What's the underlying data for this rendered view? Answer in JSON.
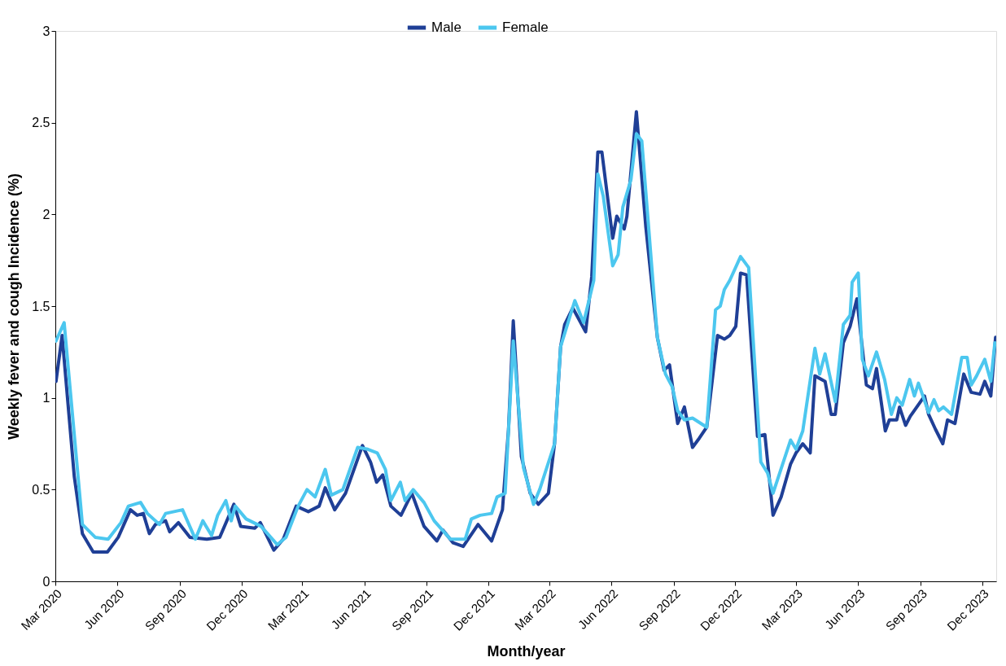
{
  "chart_data": {
    "type": "line",
    "xlabel": "Month/year",
    "ylabel": "Weekly fever and cough Incidence (%)",
    "xlim": [
      "2020-03-01",
      "2023-12-22"
    ],
    "xticks": [
      {
        "value": "2020-03-01",
        "label": "Mar 2020"
      },
      {
        "value": "2020-06-01",
        "label": "Jun 2020"
      },
      {
        "value": "2020-09-01",
        "label": "Sep 2020"
      },
      {
        "value": "2020-12-01",
        "label": "Dec 2020"
      },
      {
        "value": "2021-03-01",
        "label": "Mar 2021"
      },
      {
        "value": "2021-06-01",
        "label": "Jun 2021"
      },
      {
        "value": "2021-09-01",
        "label": "Sep 2021"
      },
      {
        "value": "2021-12-01",
        "label": "Dec 2021"
      },
      {
        "value": "2022-03-01",
        "label": "Mar 2022"
      },
      {
        "value": "2022-06-01",
        "label": "Jun 2022"
      },
      {
        "value": "2022-09-01",
        "label": "Sep 2022"
      },
      {
        "value": "2022-12-01",
        "label": "Dec 2022"
      },
      {
        "value": "2023-03-01",
        "label": "Mar 2023"
      },
      {
        "value": "2023-06-01",
        "label": "Jun 2023"
      },
      {
        "value": "2023-09-01",
        "label": "Sep 2023"
      },
      {
        "value": "2023-12-01",
        "label": "Dec 2023"
      }
    ],
    "ylim": [
      0,
      3
    ],
    "yticks": [
      0,
      0.5,
      1,
      1.5,
      2,
      2.5,
      3
    ],
    "grid": false,
    "legend": "top",
    "marker": "none",
    "line_style": "solid",
    "series": [
      {
        "name": "Male",
        "color": "#1f3f96",
        "x": [
          "2020-03-02",
          "2020-03-11",
          "2020-03-29",
          "2020-04-10",
          "2020-04-26",
          "2020-05-17",
          "2020-06-02",
          "2020-06-20",
          "2020-06-30",
          "2020-07-09",
          "2020-07-18",
          "2020-07-27",
          "2020-08-11",
          "2020-08-17",
          "2020-08-30",
          "2020-09-16",
          "2020-10-11",
          "2020-10-30",
          "2020-11-20",
          "2020-11-30",
          "2020-12-21",
          "2020-12-29",
          "2021-01-18",
          "2021-02-01",
          "2021-02-20",
          "2021-03-10",
          "2021-03-26",
          "2021-04-04",
          "2021-04-18",
          "2021-05-04",
          "2021-05-29",
          "2021-06-10",
          "2021-06-19",
          "2021-06-28",
          "2021-07-10",
          "2021-07-25",
          "2021-08-10",
          "2021-08-28",
          "2021-09-16",
          "2021-09-25",
          "2021-10-10",
          "2021-10-25",
          "2021-11-16",
          "2021-12-06",
          "2021-12-22",
          "2021-12-31",
          "2022-01-07",
          "2022-01-19",
          "2022-02-01",
          "2022-02-13",
          "2022-02-28",
          "2022-03-09",
          "2022-03-18",
          "2022-03-24",
          "2022-04-05",
          "2022-04-24",
          "2022-05-03",
          "2022-05-12",
          "2022-05-18",
          "2022-06-03",
          "2022-06-09",
          "2022-06-20",
          "2022-06-24",
          "2022-07-08",
          "2022-07-22",
          "2022-08-08",
          "2022-08-18",
          "2022-08-26",
          "2022-09-07",
          "2022-09-17",
          "2022-09-29",
          "2022-10-09",
          "2022-10-20",
          "2022-11-05",
          "2022-11-15",
          "2022-11-23",
          "2022-12-02",
          "2022-12-09",
          "2022-12-18",
          "2023-01-03",
          "2023-01-14",
          "2023-01-26",
          "2023-02-07",
          "2023-02-21",
          "2023-03-01",
          "2023-03-11",
          "2023-03-22",
          "2023-03-29",
          "2023-04-13",
          "2023-04-22",
          "2023-04-28",
          "2023-05-10",
          "2023-05-20",
          "2023-05-30",
          "2023-06-13",
          "2023-06-22",
          "2023-06-28",
          "2023-07-11",
          "2023-07-17",
          "2023-07-28",
          "2023-08-01",
          "2023-08-10",
          "2023-08-17",
          "2023-09-07",
          "2023-09-13",
          "2023-09-23",
          "2023-10-04",
          "2023-10-11",
          "2023-10-22",
          "2023-11-04",
          "2023-11-15",
          "2023-11-28",
          "2023-12-05",
          "2023-12-14",
          "2023-12-21"
        ],
        "values": [
          1.09,
          1.34,
          0.57,
          0.26,
          0.16,
          0.16,
          0.24,
          0.39,
          0.36,
          0.37,
          0.26,
          0.31,
          0.33,
          0.27,
          0.32,
          0.24,
          0.23,
          0.24,
          0.42,
          0.3,
          0.29,
          0.32,
          0.17,
          0.23,
          0.41,
          0.38,
          0.41,
          0.51,
          0.39,
          0.48,
          0.74,
          0.65,
          0.54,
          0.58,
          0.41,
          0.36,
          0.48,
          0.3,
          0.22,
          0.28,
          0.21,
          0.19,
          0.31,
          0.22,
          0.39,
          0.83,
          1.42,
          0.68,
          0.48,
          0.42,
          0.48,
          0.75,
          1.28,
          1.4,
          1.49,
          1.36,
          1.66,
          2.34,
          2.34,
          1.87,
          1.99,
          1.92,
          1.99,
          2.56,
          1.93,
          1.33,
          1.15,
          1.18,
          0.86,
          0.95,
          0.73,
          0.78,
          0.84,
          1.34,
          1.32,
          1.34,
          1.39,
          1.68,
          1.67,
          0.79,
          0.8,
          0.36,
          0.46,
          0.64,
          0.7,
          0.75,
          0.7,
          1.12,
          1.09,
          0.91,
          0.91,
          1.3,
          1.39,
          1.54,
          1.07,
          1.05,
          1.16,
          0.82,
          0.88,
          0.88,
          0.95,
          0.85,
          0.9,
          1.01,
          0.91,
          0.83,
          0.75,
          0.88,
          0.86,
          1.13,
          1.03,
          1.02,
          1.09,
          1.01,
          1.33
        ]
      },
      {
        "name": "Female",
        "color": "#4cc7ef",
        "x": [
          "2020-03-02",
          "2020-03-14",
          "2020-04-10",
          "2020-04-29",
          "2020-05-18",
          "2020-06-06",
          "2020-06-17",
          "2020-07-05",
          "2020-07-15",
          "2020-08-02",
          "2020-08-11",
          "2020-09-05",
          "2020-09-24",
          "2020-10-05",
          "2020-10-18",
          "2020-10-27",
          "2020-11-08",
          "2020-11-16",
          "2020-11-22",
          "2020-12-08",
          "2020-12-30",
          "2021-01-23",
          "2021-02-05",
          "2021-02-23",
          "2021-03-08",
          "2021-03-20",
          "2021-04-04",
          "2021-04-13",
          "2021-04-30",
          "2021-05-22",
          "2021-06-06",
          "2021-06-20",
          "2021-07-02",
          "2021-07-10",
          "2021-07-24",
          "2021-07-31",
          "2021-08-12",
          "2021-08-28",
          "2021-09-12",
          "2021-10-06",
          "2021-10-28",
          "2021-11-06",
          "2021-11-19",
          "2021-12-06",
          "2021-12-14",
          "2021-12-26",
          "2022-01-07",
          "2022-01-22",
          "2022-02-06",
          "2022-02-15",
          "2022-03-09",
          "2022-03-18",
          "2022-04-08",
          "2022-04-21",
          "2022-05-06",
          "2022-05-12",
          "2022-05-20",
          "2022-06-03",
          "2022-06-11",
          "2022-06-18",
          "2022-06-30",
          "2022-07-08",
          "2022-07-16",
          "2022-08-08",
          "2022-08-20",
          "2022-08-30",
          "2022-09-07",
          "2022-09-17",
          "2022-09-29",
          "2022-10-20",
          "2022-11-02",
          "2022-11-09",
          "2022-11-15",
          "2022-11-23",
          "2022-12-09",
          "2022-12-21",
          "2023-01-08",
          "2023-01-18",
          "2023-01-26",
          "2023-02-21",
          "2023-03-01",
          "2023-03-11",
          "2023-03-29",
          "2023-04-05",
          "2023-04-13",
          "2023-04-28",
          "2023-05-10",
          "2023-05-20",
          "2023-05-23",
          "2023-06-01",
          "2023-06-07",
          "2023-06-16",
          "2023-06-28",
          "2023-07-10",
          "2023-07-20",
          "2023-07-28",
          "2023-08-05",
          "2023-08-16",
          "2023-08-23",
          "2023-08-29",
          "2023-09-13",
          "2023-09-21",
          "2023-09-28",
          "2023-10-05",
          "2023-10-17",
          "2023-11-01",
          "2023-11-09",
          "2023-11-15",
          "2023-11-23",
          "2023-12-05",
          "2023-12-14",
          "2023-12-20"
        ],
        "values": [
          1.31,
          1.41,
          0.31,
          0.24,
          0.23,
          0.32,
          0.41,
          0.43,
          0.37,
          0.31,
          0.37,
          0.39,
          0.23,
          0.33,
          0.25,
          0.36,
          0.44,
          0.33,
          0.41,
          0.34,
          0.3,
          0.2,
          0.24,
          0.41,
          0.5,
          0.46,
          0.61,
          0.47,
          0.5,
          0.73,
          0.72,
          0.7,
          0.61,
          0.44,
          0.54,
          0.44,
          0.5,
          0.43,
          0.33,
          0.23,
          0.23,
          0.34,
          0.36,
          0.37,
          0.46,
          0.48,
          1.31,
          0.62,
          0.42,
          0.5,
          0.75,
          1.28,
          1.53,
          1.41,
          1.64,
          2.22,
          2.1,
          1.72,
          1.78,
          2.04,
          2.19,
          2.44,
          2.4,
          1.33,
          1.13,
          1.06,
          0.93,
          0.88,
          0.89,
          0.84,
          1.48,
          1.5,
          1.59,
          1.64,
          1.77,
          1.71,
          0.65,
          0.59,
          0.48,
          0.77,
          0.72,
          0.82,
          1.27,
          1.13,
          1.24,
          0.98,
          1.4,
          1.45,
          1.63,
          1.68,
          1.21,
          1.12,
          1.25,
          1.1,
          0.91,
          1.0,
          0.96,
          1.1,
          1.01,
          1.08,
          0.92,
          0.99,
          0.93,
          0.95,
          0.91,
          1.22,
          1.22,
          1.07,
          1.12,
          1.21,
          1.09,
          1.3
        ]
      }
    ]
  }
}
